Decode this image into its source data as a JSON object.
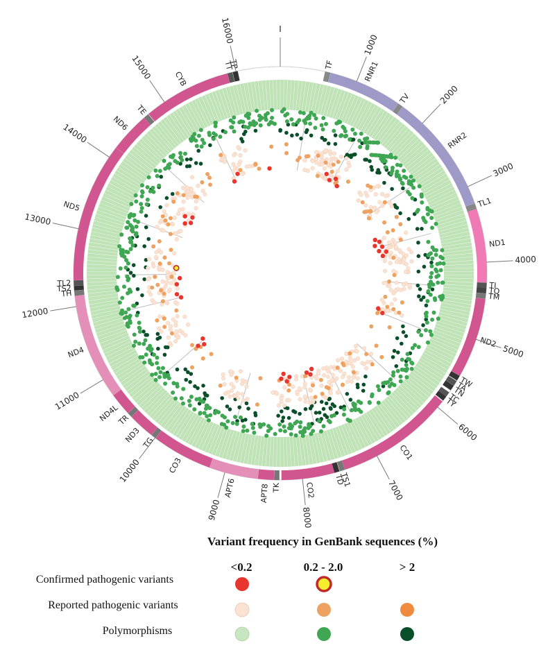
{
  "genome_length": 16569,
  "origin_label": "I",
  "position_ticks": [
    1000,
    2000,
    3000,
    4000,
    5000,
    6000,
    7000,
    8000,
    9000,
    10000,
    11000,
    12000,
    13000,
    14000,
    15000,
    16000
  ],
  "genes": [
    {
      "name": "TF",
      "start": 577,
      "end": 647,
      "color": "#888888"
    },
    {
      "name": "RNR1",
      "start": 648,
      "end": 1601,
      "color": "#9e9ac8"
    },
    {
      "name": "TV",
      "start": 1602,
      "end": 1670,
      "color": "#888888"
    },
    {
      "name": "RNR2",
      "start": 1671,
      "end": 3229,
      "color": "#9e9ac8"
    },
    {
      "name": "TL1",
      "start": 3230,
      "end": 3306,
      "color": "#888888"
    },
    {
      "name": "ND1",
      "start": 3307,
      "end": 4262,
      "color": "#f07ab5"
    },
    {
      "name": "TI",
      "start": 4263,
      "end": 4331,
      "color": "#555555"
    },
    {
      "name": "TQ",
      "start": 4329,
      "end": 4400,
      "color": "#444444"
    },
    {
      "name": "TM",
      "start": 4402,
      "end": 4469,
      "color": "#777777"
    },
    {
      "name": "ND2",
      "start": 4470,
      "end": 5511,
      "color": "#d1558f"
    },
    {
      "name": "TW",
      "start": 5512,
      "end": 5579,
      "color": "#333333"
    },
    {
      "name": "TA",
      "start": 5587,
      "end": 5655,
      "color": "#555555"
    },
    {
      "name": "TN",
      "start": 5657,
      "end": 5729,
      "color": "#333333"
    },
    {
      "name": "TC",
      "start": 5761,
      "end": 5826,
      "color": "#555555"
    },
    {
      "name": "TY",
      "start": 5826,
      "end": 5891,
      "color": "#333333"
    },
    {
      "name": "CO1",
      "start": 5904,
      "end": 7445,
      "color": "#d1558f"
    },
    {
      "name": "TS1",
      "start": 7446,
      "end": 7514,
      "color": "#777777"
    },
    {
      "name": "TD",
      "start": 7518,
      "end": 7585,
      "color": "#333333"
    },
    {
      "name": "CO2",
      "start": 7586,
      "end": 8269,
      "color": "#d1558f"
    },
    {
      "name": "TK",
      "start": 8295,
      "end": 8364,
      "color": "#777777"
    },
    {
      "name": "APT8",
      "start": 8366,
      "end": 8572,
      "color": "#d1558f"
    },
    {
      "name": "APT6",
      "start": 8573,
      "end": 9207,
      "color": "#e48fb8"
    },
    {
      "name": "CO3",
      "start": 9207,
      "end": 9990,
      "color": "#d1558f"
    },
    {
      "name": "TG",
      "start": 9991,
      "end": 10058,
      "color": "#777777"
    },
    {
      "name": "ND3",
      "start": 10059,
      "end": 10404,
      "color": "#d1558f"
    },
    {
      "name": "TR",
      "start": 10405,
      "end": 10469,
      "color": "#777777"
    },
    {
      "name": "ND4L",
      "start": 10470,
      "end": 10766,
      "color": "#d1558f"
    },
    {
      "name": "ND4",
      "start": 10760,
      "end": 12137,
      "color": "#e48fb8"
    },
    {
      "name": "TH",
      "start": 12138,
      "end": 12206,
      "color": "#777777"
    },
    {
      "name": "TS2",
      "start": 12207,
      "end": 12265,
      "color": "#333333"
    },
    {
      "name": "TL2",
      "start": 12266,
      "end": 12336,
      "color": "#555555"
    },
    {
      "name": "ND5",
      "start": 12337,
      "end": 14148,
      "color": "#d1558f"
    },
    {
      "name": "ND6",
      "start": 14149,
      "end": 14673,
      "color": "#d1558f"
    },
    {
      "name": "TE",
      "start": 14674,
      "end": 14742,
      "color": "#777777"
    },
    {
      "name": "CYB",
      "start": 14747,
      "end": 15887,
      "color": "#d1558f"
    },
    {
      "name": "TT",
      "start": 15888,
      "end": 15953,
      "color": "#555555"
    },
    {
      "name": "TP",
      "start": 15956,
      "end": 16023,
      "color": "#333333"
    }
  ],
  "colors": {
    "confirmed_low": "#e8352e",
    "confirmed_mid_fill": "#f6ee2c",
    "confirmed_mid_ring": "#c0282a",
    "reported_low": "#fbe3d3",
    "reported_mid": "#eea261",
    "reported_high": "#ef8a3e",
    "poly_low": "#c8e7c1",
    "poly_mid": "#3fa653",
    "poly_high": "#0b4e2a",
    "poly_low_band": "#bfe2b7"
  },
  "legend": {
    "title": "Variant frequency in GenBank sequences (%)",
    "columns": [
      "<0.2",
      "0.2 - 2.0",
      "> 2"
    ],
    "rows": [
      {
        "label": "Confirmed pathogenic variants",
        "swatches": [
          "confirmed_low",
          "confirmed_mid",
          null
        ]
      },
      {
        "label": "Reported pathogenic variants",
        "swatches": [
          "reported_low",
          "reported_mid",
          "reported_high"
        ]
      },
      {
        "label": "Polymorphisms",
        "swatches": [
          "poly_low",
          "poly_mid",
          "poly_high"
        ]
      }
    ]
  }
}
